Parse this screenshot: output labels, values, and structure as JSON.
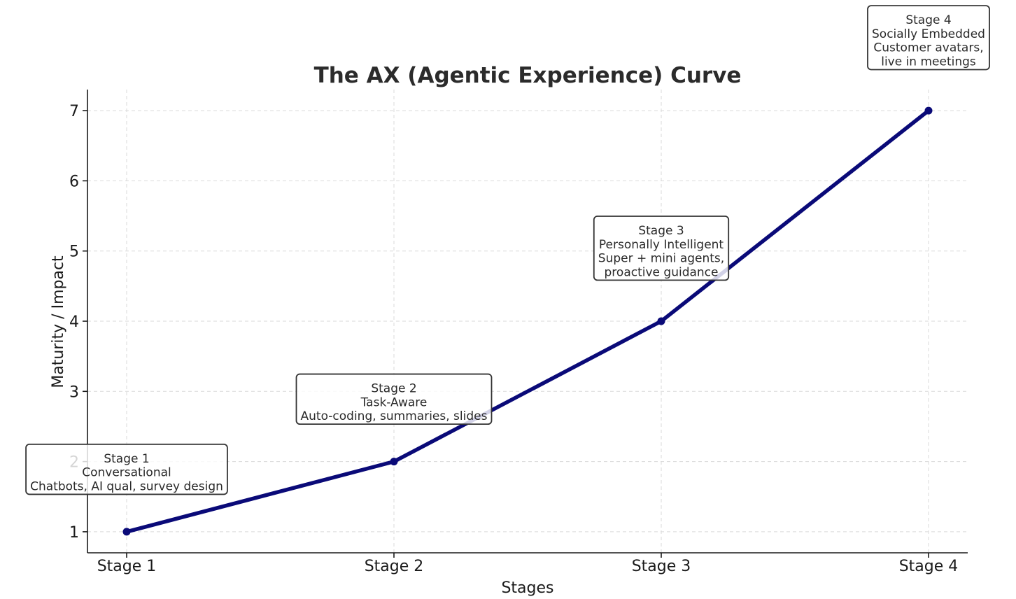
{
  "chart_data": {
    "type": "line",
    "title": "The AX (Agentic Experience) Curve",
    "xlabel": "Stages",
    "ylabel": "Maturity / Impact",
    "categories": [
      "Stage 1",
      "Stage 2",
      "Stage 3",
      "Stage 4"
    ],
    "series": [
      {
        "values": [
          1,
          2,
          4,
          7
        ]
      }
    ],
    "yticks": [
      1,
      2,
      3,
      4,
      5,
      6,
      7
    ],
    "ylim": [
      0.7,
      7.3
    ],
    "grid": true,
    "line_color": "#0a0a78",
    "annotations": [
      {
        "point": 0,
        "y": 1.85,
        "lines": [
          "Stage 1",
          "Conversational",
          "Chatbots, AI qual, survey design"
        ]
      },
      {
        "point": 1,
        "y": 2.85,
        "lines": [
          "Stage 2",
          "Task-Aware",
          "Auto-coding, summaries, slides"
        ]
      },
      {
        "point": 2,
        "y": 5.0,
        "lines": [
          "Stage 3",
          "Personally Intelligent",
          "Super + mini agents,",
          "proactive guidance"
        ]
      },
      {
        "point": 3,
        "y": 8.0,
        "lines": [
          "Stage 4",
          "Socially Embedded",
          "Customer avatars,",
          "live in meetings"
        ]
      }
    ]
  }
}
